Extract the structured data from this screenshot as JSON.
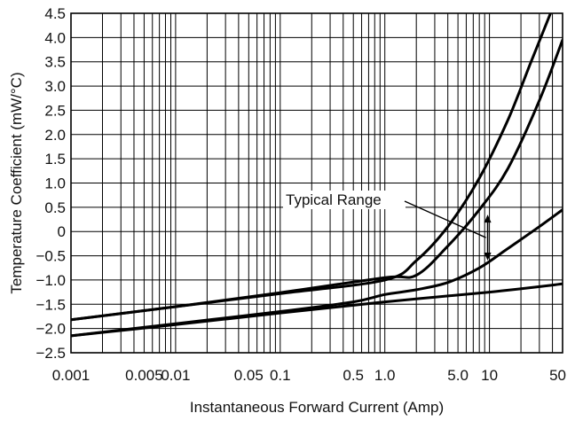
{
  "chart_data": {
    "type": "line",
    "title": "",
    "xlabel": "Instantaneous Forward Current (Amp)",
    "ylabel": "Temperature Coefficient (mW/°C)",
    "x_scale": "log",
    "xlim": [
      0.001,
      50
    ],
    "ylim": [
      -2.5,
      4.5
    ],
    "grid": true,
    "x_tick_values": [
      0.001,
      0.005,
      0.01,
      0.05,
      0.1,
      0.5,
      1,
      5,
      10,
      50
    ],
    "x_tick_labels": [
      "0.001",
      "0.005",
      "0.01",
      "0.05",
      "0.1",
      "0.5",
      "1.0",
      "5.0",
      "10",
      "50"
    ],
    "y_ticks": [
      "-2.5",
      "-2.0",
      "-1.5",
      "-1.0",
      "-0.5",
      "0",
      "0.5",
      "1.0",
      "1.5",
      "2.0",
      "2.5",
      "3.0",
      "3.5",
      "4.0",
      "4.5"
    ],
    "annotations": [
      {
        "text": "Typical Range",
        "arrow_x": 10,
        "arrow_range_y": [
          -0.6,
          0.35
        ]
      }
    ],
    "series": [
      {
        "x": [
          0.001,
          0.01,
          0.1,
          1,
          2,
          4,
          8,
          15,
          25,
          40
        ],
        "y": [
          -1.82,
          -1.55,
          -1.28,
          -1.0,
          -0.6,
          0.1,
          1.1,
          2.3,
          3.5,
          4.6
        ]
      },
      {
        "x": [
          0.001,
          0.01,
          0.1,
          1,
          2,
          4,
          8,
          15,
          30,
          50
        ],
        "y": [
          -1.82,
          -1.55,
          -1.26,
          -0.95,
          -0.9,
          -0.3,
          0.45,
          1.3,
          2.7,
          3.95
        ]
      },
      {
        "x": [
          0.001,
          0.01,
          0.1,
          0.5,
          1,
          2,
          4,
          8,
          15,
          30,
          50
        ],
        "y": [
          -2.15,
          -1.9,
          -1.65,
          -1.45,
          -1.3,
          -1.2,
          -1.05,
          -0.75,
          -0.35,
          0.1,
          0.45
        ]
      },
      {
        "x": [
          0.001,
          0.01,
          0.1,
          1,
          10,
          50
        ],
        "y": [
          -2.15,
          -1.92,
          -1.68,
          -1.45,
          -1.25,
          -1.08
        ]
      }
    ]
  }
}
